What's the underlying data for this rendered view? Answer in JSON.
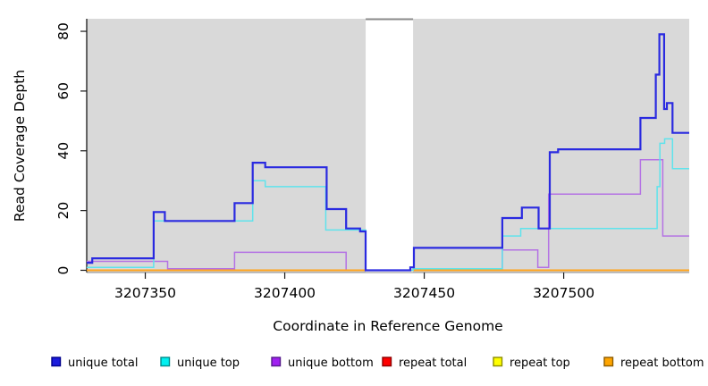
{
  "figure": {
    "xlabel": "Coordinate in Reference Genome",
    "ylabel": "Read Coverage Depth",
    "plot_bg_color": "#D9D9D9",
    "masked_band_color": "#FFFFFF",
    "masked_band_cap_color": "#8A8A8A"
  },
  "legend": {
    "items": [
      {
        "label": "unique total",
        "color": "#1C1CDC",
        "border": "#00008B"
      },
      {
        "label": "unique top",
        "color": "#00F0F0",
        "border": "#008B8B"
      },
      {
        "label": "unique bottom",
        "color": "#A020F0",
        "border": "#551A8B"
      },
      {
        "label": "repeat total",
        "color": "#FF0000",
        "border": "#8B0000"
      },
      {
        "label": "repeat top",
        "color": "#FFFF00",
        "border": "#8B8B00"
      },
      {
        "label": "repeat bottom",
        "color": "#FFA500",
        "border": "#8B5A00"
      }
    ]
  },
  "chart_data": {
    "type": "line",
    "line_style": "step-after",
    "title": "",
    "xlabel": "Coordinate in Reference Genome",
    "ylabel": "Read Coverage Depth",
    "xlim": [
      3207329,
      3207545
    ],
    "ylim": [
      0,
      84.2
    ],
    "x_ticks": [
      3207350,
      3207400,
      3207450,
      3207500
    ],
    "y_ticks": [
      0,
      20,
      40,
      60,
      80
    ],
    "grid": false,
    "legend_position": "bottom",
    "masked_region": [
      3207429,
      3207446
    ],
    "series": [
      {
        "name": "repeat total",
        "color": "#E81010",
        "width": 1.4,
        "steps": [
          [
            3207329,
            0
          ]
        ]
      },
      {
        "name": "repeat top",
        "color": "#F0E000",
        "width": 1.4,
        "steps": [
          [
            3207329,
            0
          ]
        ]
      },
      {
        "name": "unique bottom",
        "color": "#B472E4",
        "width": 1.5,
        "steps": [
          [
            3207329,
            3
          ],
          [
            3207358,
            0.5
          ],
          [
            3207382,
            6
          ],
          [
            3207422,
            0
          ],
          [
            3207478,
            6.8
          ],
          [
            3207490.7,
            1
          ],
          [
            3207494.6,
            25.5
          ],
          [
            3207527.5,
            37
          ],
          [
            3207535.5,
            11.5
          ]
        ]
      },
      {
        "name": "repeat bottom",
        "color": "#FFA41C",
        "width": 2,
        "steps": [
          [
            3207329,
            0
          ]
        ]
      },
      {
        "name": "unique top",
        "color": "#5FE3EC",
        "width": 1.5,
        "steps": [
          [
            3207329,
            1
          ],
          [
            3207353,
            16.5
          ],
          [
            3207388.5,
            30
          ],
          [
            3207393,
            28
          ],
          [
            3207414.7,
            13.5
          ],
          [
            3207429,
            0
          ],
          [
            3207446,
            0.5
          ],
          [
            3207478,
            11.5
          ],
          [
            3207484.6,
            14
          ],
          [
            3207533.5,
            28
          ],
          [
            3207534.5,
            42.5
          ],
          [
            3207536.2,
            44
          ],
          [
            3207539,
            34
          ]
        ]
      },
      {
        "name": "unique total",
        "color": "#2A2AE0",
        "width": 2.2,
        "steps": [
          [
            3207329,
            2.5
          ],
          [
            3207331,
            4
          ],
          [
            3207353,
            19.5
          ],
          [
            3207357,
            16.5
          ],
          [
            3207382,
            22.5
          ],
          [
            3207388.5,
            36
          ],
          [
            3207393,
            34.5
          ],
          [
            3207415,
            20.5
          ],
          [
            3207422,
            14
          ],
          [
            3207427,
            13
          ],
          [
            3207429,
            0
          ],
          [
            3207445,
            1
          ],
          [
            3207446.3,
            7.5
          ],
          [
            3207478,
            17.5
          ],
          [
            3207485,
            21
          ],
          [
            3207491,
            14
          ],
          [
            3207495,
            39.5
          ],
          [
            3207498,
            40.5
          ],
          [
            3207527.5,
            51
          ],
          [
            3207533,
            65.5
          ],
          [
            3207534.3,
            79
          ],
          [
            3207536,
            54
          ],
          [
            3207537,
            56
          ],
          [
            3207539,
            46
          ]
        ]
      }
    ]
  }
}
